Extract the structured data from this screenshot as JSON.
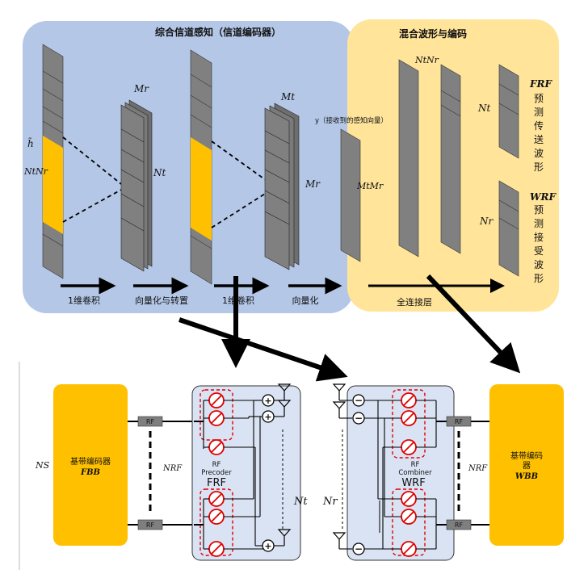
{
  "top": {
    "sensing_title": "综合信道感知（信道编码器）",
    "hybrid_title": "混合波形与编码",
    "h_label": "h̃",
    "nt_nr": "NtNr",
    "mr_label": "Mr",
    "nt_label": "Nt",
    "mt_label": "Mt",
    "mr_label2": "Mr",
    "y_label": "y（接收到的感知向量）",
    "mtmr_label": "MtMr",
    "ntnr_top": "NtNr",
    "nt_label_right": "Nt",
    "nr_label_right": "Nr",
    "frf_label": "FRF",
    "frf_desc": [
      "预",
      "测",
      "传",
      "送",
      "波",
      "形"
    ],
    "wrf_label": "WRF",
    "wrf_desc": [
      "预",
      "测",
      "接",
      "受",
      "波",
      "形"
    ],
    "steps": [
      "1维卷积",
      "向量化与转置",
      "1维卷积",
      "向量化",
      "全连接层"
    ]
  },
  "bottom": {
    "bb_encoder_left": "基带编码器",
    "fbb_label": "FBB",
    "ns_label": "NS",
    "nrf_label": "NRF",
    "rf_label": "RF",
    "precoder_title": [
      "RF",
      "Precoder"
    ],
    "precoder_symbol": "FRF",
    "nt_antennas": "Nt",
    "nr_antennas": "Nr",
    "combiner_title": [
      "RF",
      "Combiner"
    ],
    "combiner_symbol": "WRF",
    "bb_encoder_right": [
      "基带编码",
      "器"
    ],
    "wbb_label": "WBB"
  },
  "colors": {
    "sensing_bg": "#b4c7e7",
    "hybrid_bg": "#ffe49a",
    "layer_gray": "#808080",
    "highlight": "#ffc000",
    "bb_block": "#ffc000",
    "rf_module_bg": "#dae3f3",
    "phase_red": "#e00000"
  }
}
